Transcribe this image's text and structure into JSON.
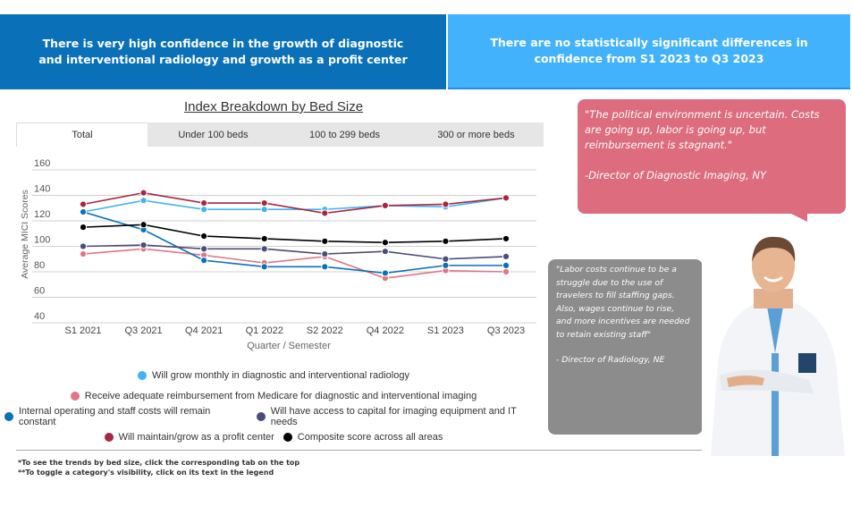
{
  "banners": {
    "left": "There is very high confidence in the growth of diagnostic and interventional radiology and growth as a profit center",
    "right": "There are no statistically significant differences in confidence from S1 2023 to Q3 2023"
  },
  "chart_title": "Index Breakdown by Bed Size",
  "tabs": [
    {
      "label": "Total",
      "active": true
    },
    {
      "label": "Under 100 beds",
      "active": false
    },
    {
      "label": "100 to 299 beds",
      "active": false
    },
    {
      "label": "300 or more beds",
      "active": false
    }
  ],
  "chart_data": {
    "type": "line",
    "title": "Index Breakdown by Bed Size",
    "xlabel": "Quarter / Semester",
    "ylabel": "Average MICI Scores",
    "ylim": [
      40,
      160
    ],
    "yticks": [
      160,
      140,
      120,
      100,
      80,
      60,
      40
    ],
    "grid": true,
    "legend_position": "bottom",
    "categories": [
      "S1 2021",
      "Q3 2021",
      "Q4 2021",
      "Q1 2022",
      "S2 2022",
      "Q4 2022",
      "S1 2023",
      "Q3 2023"
    ],
    "series": [
      {
        "name": "Will grow monthly in diagnostic and interventional radiology",
        "color": "#41b2f5",
        "values": [
          127,
          136,
          129,
          129,
          129,
          132,
          131,
          138
        ]
      },
      {
        "name": "Receive adequate reimbursement from Medicare for diagnostic and interventional imaging",
        "color": "#e07585",
        "values": [
          94,
          98,
          93,
          87,
          92,
          75,
          81,
          80
        ]
      },
      {
        "name": "Internal operating and staff costs will remain constant",
        "color": "#0a71b8",
        "values": [
          127,
          113,
          89,
          84,
          84,
          79,
          85,
          85
        ]
      },
      {
        "name": "Will have access to capital for imaging equipment and IT needs",
        "color": "#4b4c7a",
        "values": [
          100,
          101,
          98,
          98,
          94,
          96,
          90,
          92
        ]
      },
      {
        "name": "Will maintain/grow as a profit center",
        "color": "#a8273f",
        "values": [
          133,
          142,
          134,
          134,
          126,
          132,
          133,
          138
        ]
      },
      {
        "name": "Composite score across all areas",
        "color": "#000000",
        "values": [
          115,
          117,
          108,
          106,
          104,
          103,
          104,
          106
        ]
      }
    ]
  },
  "legend_rows": [
    [
      0
    ],
    [
      1
    ],
    [
      2,
      3
    ],
    [
      4,
      5
    ]
  ],
  "notes": [
    "*To see the trends by bed size, click the corresponding tab on the top",
    "**To toggle a category's visibility, click on its text in the legend"
  ],
  "quotes": {
    "pink": {
      "text": "\"The political environment is uncertain. Costs are going up, labor is going up, but reimbursement is stagnant.\"",
      "author": "-Director of Diagnostic Imaging, NY"
    },
    "grey": {
      "lines": [
        "\"Labor costs continue to be a",
        "struggle due to the use of",
        "travelers to fill staffing gaps.",
        "Also, wages continue to rise,",
        "and more incentives are needed",
        "to retain existing staff\""
      ],
      "author": "- Director of Radiology, NE"
    }
  },
  "image": {
    "alt": "Smiling doctor with crossed arms"
  }
}
